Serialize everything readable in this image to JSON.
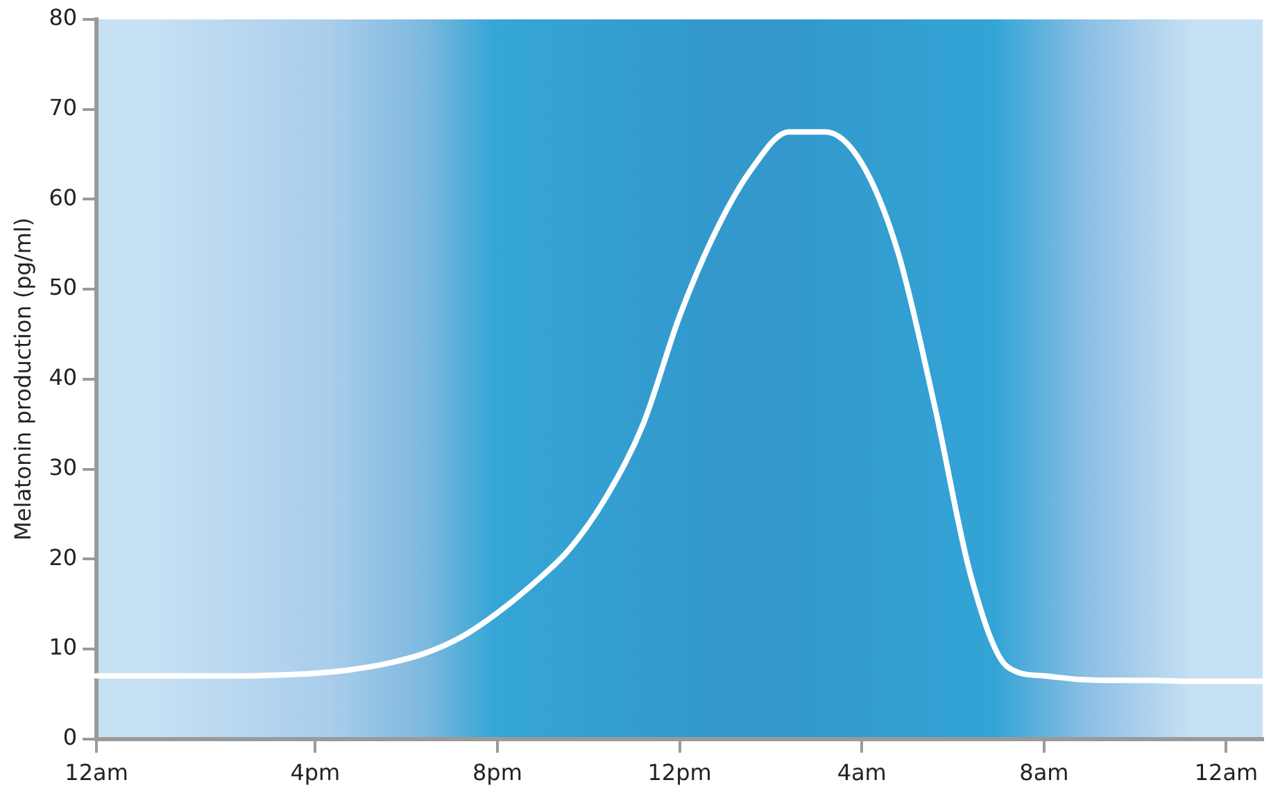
{
  "chart_data": {
    "type": "line",
    "ylabel": "Melatonin production (pg/ml)",
    "categories": [
      "12am",
      null,
      null,
      null,
      null,
      null,
      "4pm",
      null,
      null,
      null,
      null,
      "8pm",
      null,
      null,
      null,
      null,
      "12pm",
      null,
      null,
      null,
      null,
      "4am",
      null,
      null,
      null,
      null,
      "8am",
      null,
      null,
      null,
      null,
      "12am",
      null
    ],
    "series": [
      {
        "color": "#ffffff",
        "values": [
          7,
          7,
          7,
          7,
          7,
          7.1,
          7.3,
          7.7,
          8.4,
          9.5,
          11.3,
          14,
          17.3,
          21.2,
          27,
          35,
          47,
          56.5,
          63.5,
          67.5,
          67.5,
          64,
          54,
          37,
          18,
          8,
          7,
          6.6,
          6.5,
          6.5,
          6.4,
          6.4,
          6.4
        ]
      }
    ],
    "ylim": [
      0,
      80
    ],
    "yticks": [
      0,
      10,
      20,
      30,
      40,
      50,
      60,
      70,
      80
    ],
    "grid": false,
    "legend": false,
    "marker": "none",
    "line_style": "solid"
  }
}
